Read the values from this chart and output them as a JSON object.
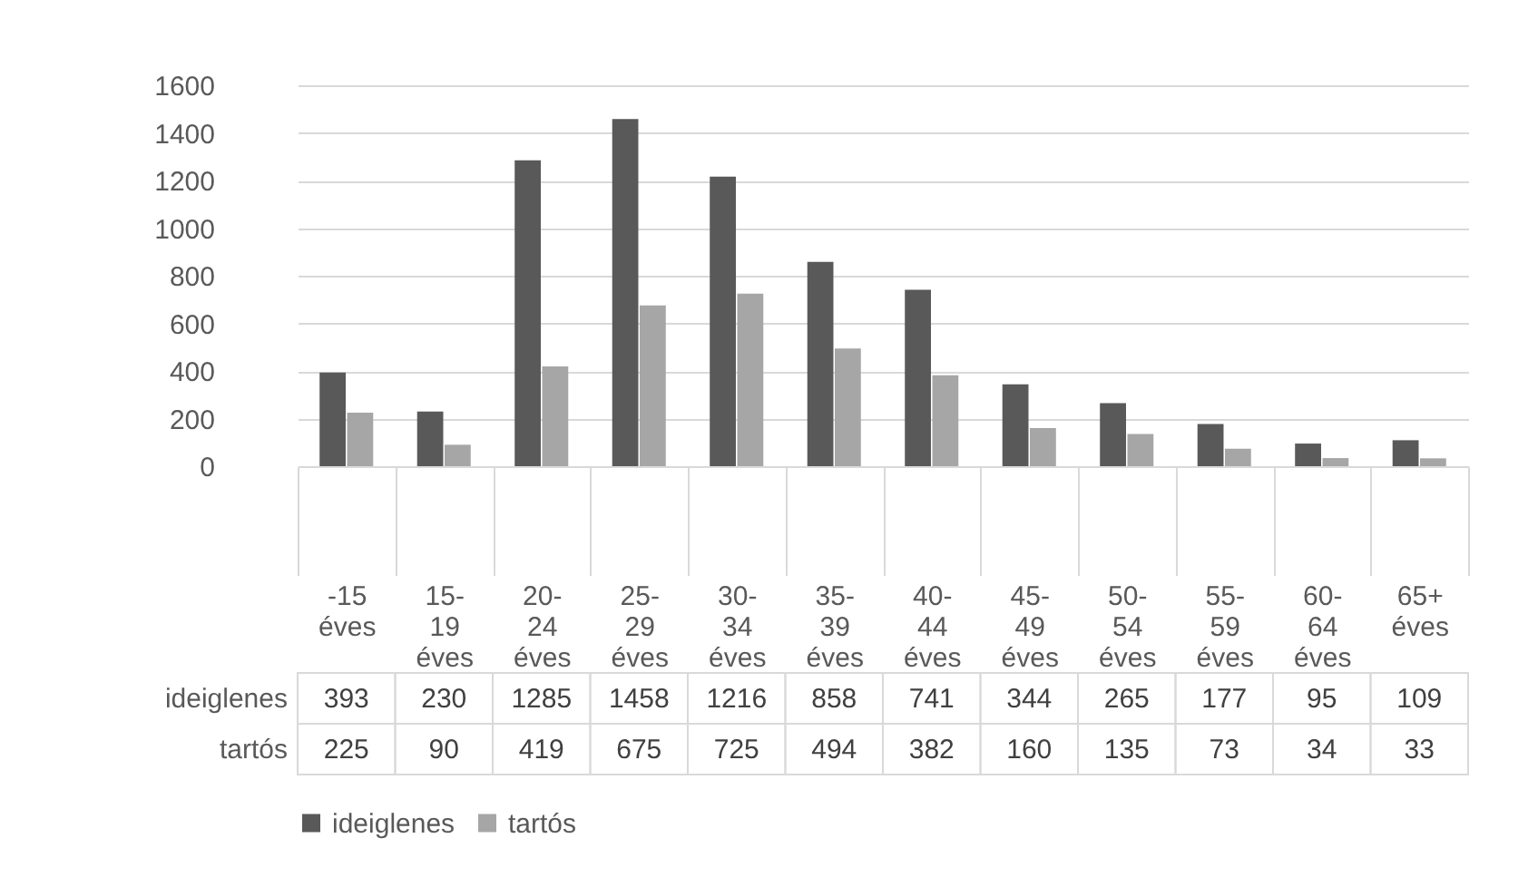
{
  "chart_data": {
    "type": "bar",
    "categories": [
      "-15 éves",
      "15-19 éves",
      "20-24 éves",
      "25-29 éves",
      "30-34 éves",
      "35-39 éves",
      "40-44 éves",
      "45-49 éves",
      "50-54 éves",
      "55-59 éves",
      "60-64 éves",
      "65+ éves"
    ],
    "series": [
      {
        "name": "ideiglenes",
        "color": "#595959",
        "values": [
          393,
          230,
          1285,
          1458,
          1216,
          858,
          741,
          344,
          265,
          177,
          95,
          109
        ]
      },
      {
        "name": "tartós",
        "color": "#a6a6a6",
        "values": [
          225,
          90,
          419,
          675,
          725,
          494,
          382,
          160,
          135,
          73,
          34,
          33
        ]
      }
    ],
    "ylim": [
      0,
      1600
    ],
    "yticks": [
      0,
      200,
      400,
      600,
      800,
      1000,
      1200,
      1400,
      1600
    ],
    "grid": "y",
    "legend": "bottom",
    "data_labels": true
  }
}
